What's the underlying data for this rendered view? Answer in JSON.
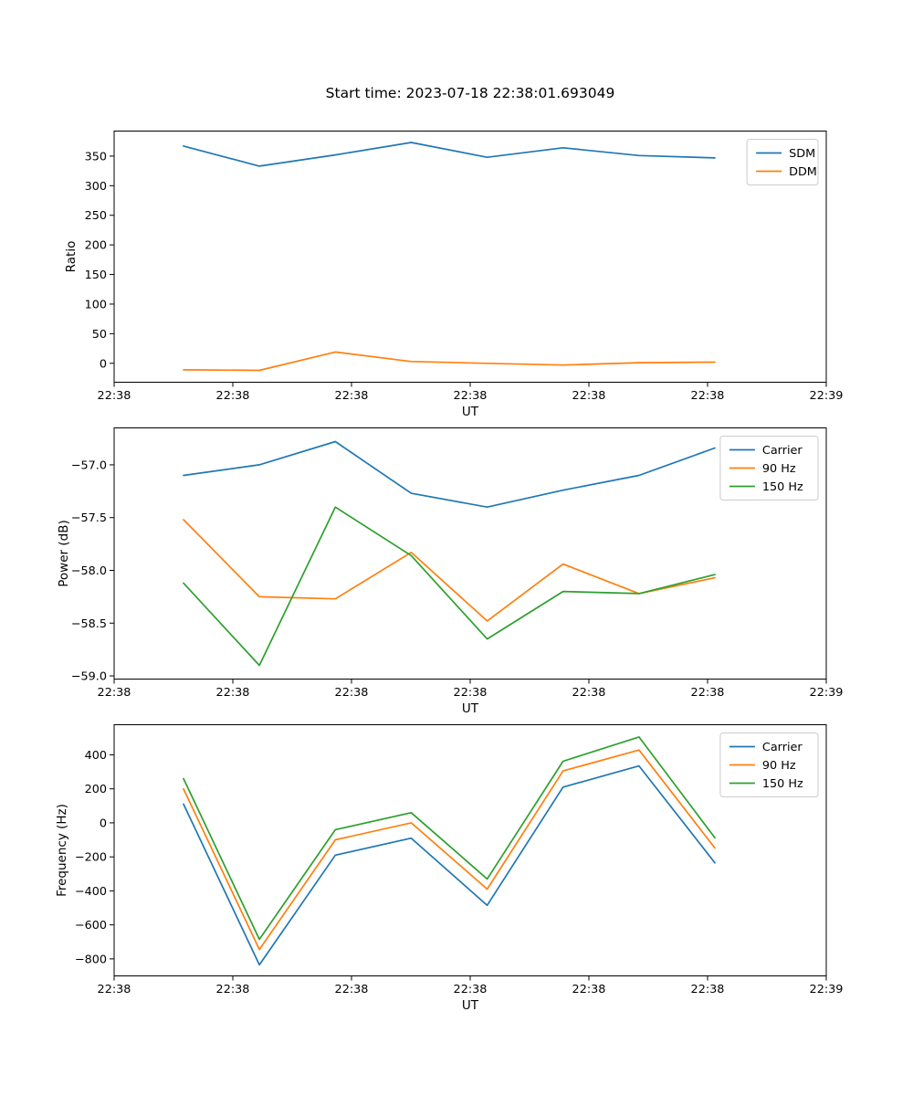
{
  "figure": {
    "background": "#ffffff",
    "text_color": "#000000",
    "spine_color": "#000000"
  },
  "chart_data": [
    {
      "name": "ratio",
      "type": "line",
      "title": "Start time: 2023-07-18 22:38:01.693049",
      "ylabel": "Ratio",
      "xlabel": "UT",
      "grid": false,
      "legend_position": "upper right",
      "ylim": [
        -32,
        392.3
      ],
      "yticks": [
        "0",
        "50",
        "100",
        "150",
        "200",
        "250",
        "300",
        "350"
      ],
      "xticklabels": [
        "22:38",
        "22:38",
        "22:38",
        "22:38",
        "22:38",
        "22:38",
        "22:39"
      ],
      "point_span_frac": [
        0.0974,
        0.8436
      ],
      "series": [
        {
          "name": "SDM",
          "color": "#1f77b4",
          "values": [
            367,
            333,
            352,
            373,
            348,
            364,
            351,
            347
          ]
        },
        {
          "name": "DDM",
          "color": "#ff7f0e",
          "values": [
            -11,
            -12,
            19,
            3,
            0,
            -3,
            1,
            2
          ]
        }
      ]
    },
    {
      "name": "power",
      "type": "line",
      "title": "",
      "ylabel": "Power (dB)",
      "xlabel": "UT",
      "grid": false,
      "legend_position": "upper right",
      "ylim": [
        -59.03,
        -56.65
      ],
      "yticks": [
        "−59.0",
        "−58.5",
        "−58.0",
        "−57.5",
        "−57.0"
      ],
      "xticklabels": [
        "22:38",
        "22:38",
        "22:38",
        "22:38",
        "22:38",
        "22:38",
        "22:39"
      ],
      "point_span_frac": [
        0.0974,
        0.8436
      ],
      "series": [
        {
          "name": "Carrier",
          "color": "#1f77b4",
          "values": [
            -57.1,
            -57.0,
            -56.78,
            -57.27,
            -57.4,
            -57.24,
            -57.1,
            -56.84
          ]
        },
        {
          "name": "90 Hz",
          "color": "#ff7f0e",
          "values": [
            -57.52,
            -58.25,
            -58.27,
            -57.83,
            -58.48,
            -57.94,
            -58.22,
            -58.07
          ]
        },
        {
          "name": "150 Hz",
          "color": "#2ca02c",
          "values": [
            -58.12,
            -58.9,
            -57.4,
            -57.86,
            -58.65,
            -58.2,
            -58.22,
            -58.04
          ]
        }
      ]
    },
    {
      "name": "frequency",
      "type": "line",
      "title": "",
      "ylabel": "Frequency (Hz)",
      "xlabel": "UT",
      "grid": false,
      "legend_position": "upper right",
      "ylim": [
        -900,
        577
      ],
      "yticks": [
        "−800",
        "−600",
        "−400",
        "−200",
        "0",
        "200",
        "400"
      ],
      "xticklabels": [
        "22:38",
        "22:38",
        "22:38",
        "22:38",
        "22:38",
        "22:38",
        "22:39"
      ],
      "point_span_frac": [
        0.0974,
        0.8436
      ],
      "series": [
        {
          "name": "Carrier",
          "color": "#1f77b4",
          "values": [
            110,
            -835,
            -190,
            -90,
            -485,
            210,
            335,
            -235
          ]
        },
        {
          "name": "90 Hz",
          "color": "#ff7f0e",
          "values": [
            200,
            -745,
            -100,
            0,
            -390,
            305,
            428,
            -148
          ]
        },
        {
          "name": "150 Hz",
          "color": "#2ca02c",
          "values": [
            260,
            -685,
            -40,
            60,
            -330,
            362,
            505,
            -88
          ]
        }
      ]
    }
  ]
}
